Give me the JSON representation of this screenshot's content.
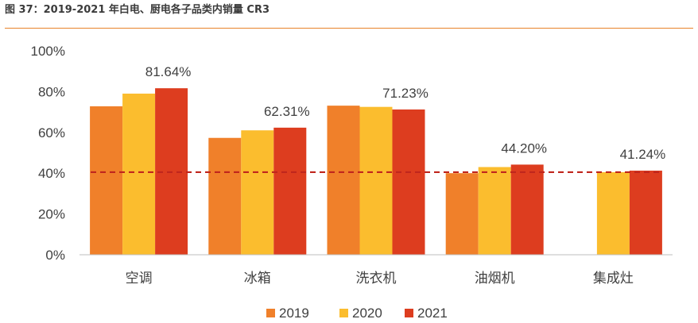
{
  "title": "图 37：2019-2021 年白电、厨电各子品类内销量 CR3",
  "colors": {
    "accent": "#e8832a",
    "s2019": "#f0802a",
    "s2020": "#fbbd2e",
    "s2021": "#dd3d1f",
    "reference_line": "#c0261d"
  },
  "chart_data": {
    "type": "bar",
    "categories": [
      "空调",
      "冰箱",
      "洗衣机",
      "油烟机",
      "集成灶"
    ],
    "series": [
      {
        "name": "2019",
        "values": [
          72.8,
          57.3,
          73.1,
          40.0,
          null
        ]
      },
      {
        "name": "2020",
        "values": [
          79.0,
          61.0,
          72.5,
          43.0,
          40.5
        ]
      },
      {
        "name": "2021",
        "values": [
          81.64,
          62.31,
          71.23,
          44.2,
          41.24
        ]
      }
    ],
    "data_labels": [
      "81.64%",
      "62.31%",
      "71.23%",
      "44.20%",
      "41.24%"
    ],
    "yticks": [
      "0%",
      "20%",
      "40%",
      "60%",
      "80%",
      "100%"
    ],
    "ylim": [
      0,
      100
    ],
    "reference_line": 40.5,
    "legend_position": "bottom",
    "grid": false
  }
}
